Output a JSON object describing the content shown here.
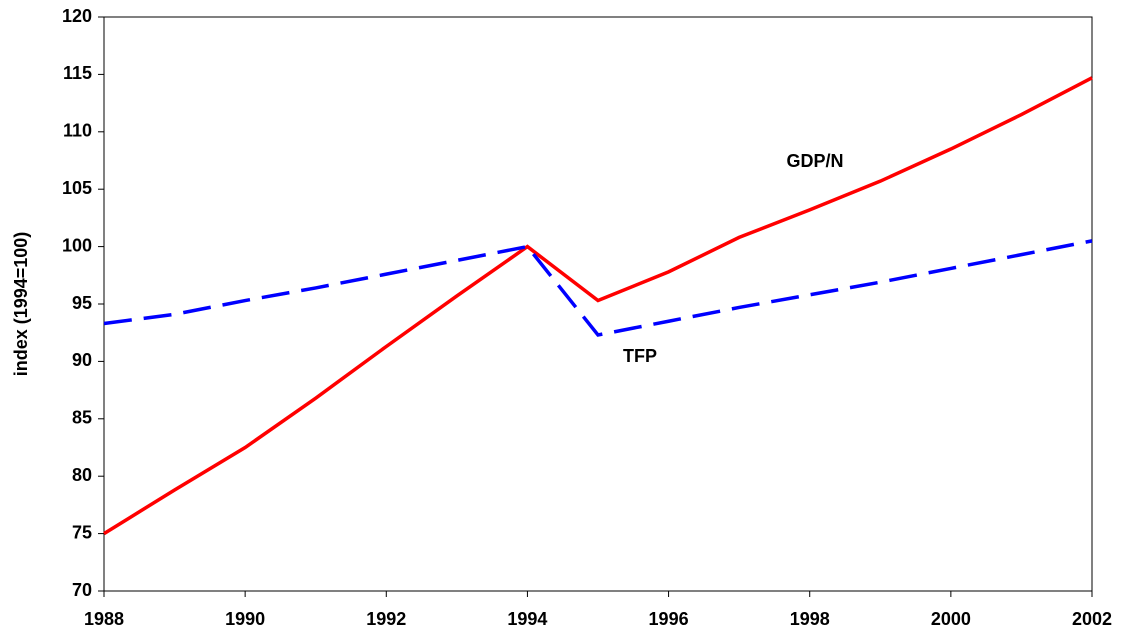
{
  "chart_data": {
    "type": "line",
    "y_label": "index (1994=100)",
    "x": [
      1988,
      1989,
      1990,
      1991,
      1992,
      1993,
      1994,
      1995,
      1996,
      1997,
      1998,
      1999,
      2000,
      2001,
      2002
    ],
    "series": [
      {
        "name": "GDP/N",
        "color": "#ff0000",
        "dash": false,
        "values": [
          75.0,
          78.8,
          82.5,
          86.8,
          91.3,
          95.7,
          100,
          95.3,
          97.8,
          100.8,
          103.2,
          105.7,
          108.5,
          111.5,
          114.7
        ]
      },
      {
        "name": "TFP",
        "color": "#0000ff",
        "dash": true,
        "values": [
          93.3,
          94.1,
          95.3,
          96.4,
          97.6,
          98.8,
          100,
          92.3,
          93.5,
          94.7,
          95.8,
          96.9,
          98.1,
          99.3,
          100.5
        ]
      }
    ],
    "xlim": [
      1988,
      2002
    ],
    "xticks": [
      1988,
      1990,
      1992,
      1994,
      1996,
      1998,
      2000,
      2002
    ],
    "ylim": [
      70,
      120
    ],
    "yticks": [
      70,
      75,
      80,
      85,
      90,
      95,
      100,
      105,
      110,
      115,
      120
    ],
    "grid": false
  }
}
